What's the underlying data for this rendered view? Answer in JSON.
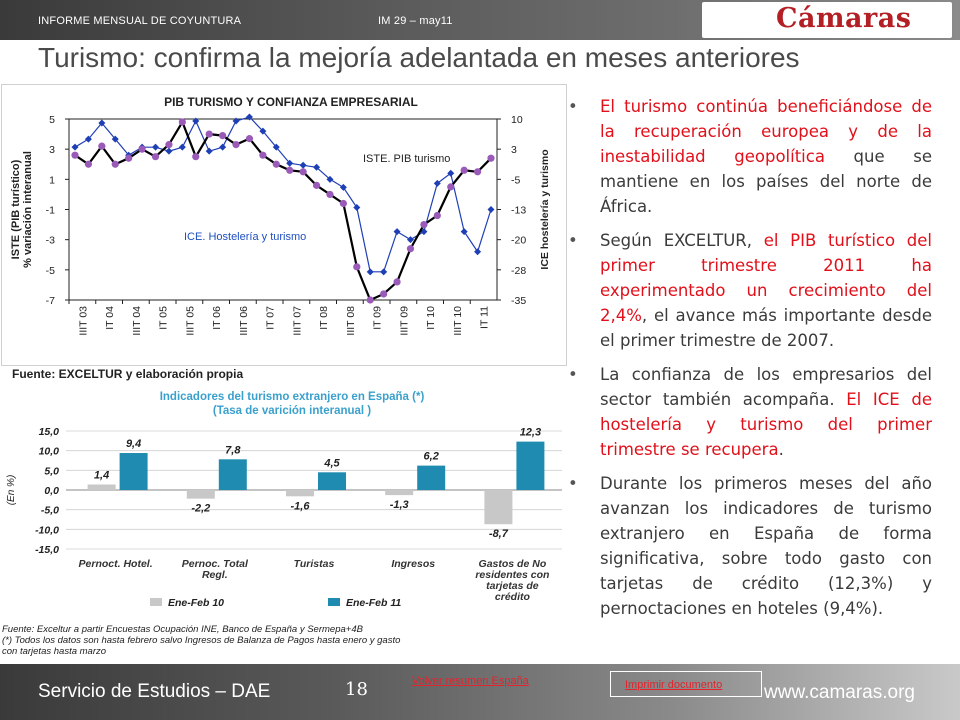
{
  "header": {
    "left": "INFORME MENSUAL DE COYUNTURA",
    "right": "IM 29 – may11",
    "logo": "Cámaras"
  },
  "title": "Turismo: confirma la mejoría adelantada en meses anteriores",
  "chart_data": [
    {
      "type": "line",
      "title": "PIB TURISMO Y CONFIANZA EMPRESARIAL",
      "ylabel_left": "ISTE (PIB turístico) % variación interanual",
      "ylabel_right": "ICE hostelería y turismo",
      "y_left_ticks": [
        "5",
        "3",
        "1",
        "-1",
        "-3",
        "-5",
        "-7"
      ],
      "y_right_ticks": [
        "10",
        "3",
        "-5",
        "-13",
        "-20",
        "-28",
        "-35"
      ],
      "ylim_left": [
        -7,
        5
      ],
      "ylim_right": [
        -35,
        10
      ],
      "x_ticks": [
        "IIIT 03",
        "IT 04",
        "IIIT 04",
        "IT 05",
        "IIIT 05",
        "IT 06",
        "IIIT 06",
        "IT 07",
        "IIIT 07",
        "IT 08",
        "IIIT 08",
        "IT 09",
        "IIIT 09",
        "IT 10",
        "IIIT 10",
        "IT 11"
      ],
      "series": [
        {
          "name": "ISTE. PIB turismo",
          "axis": "left",
          "color": "#000000",
          "values": [
            2.6,
            2.0,
            3.2,
            2.0,
            2.4,
            3.0,
            2.5,
            3.3,
            4.8,
            2.5,
            4.0,
            3.9,
            3.3,
            3.7,
            2.6,
            2.0,
            1.6,
            1.5,
            0.6,
            0.0,
            -0.6,
            -4.8,
            -7.0,
            -6.6,
            -5.8,
            -3.6,
            -2.0,
            -1.4,
            0.5,
            1.6,
            1.5,
            2.4
          ]
        },
        {
          "name": "ICE. Hostelería y turismo",
          "axis": "right",
          "color": "#1f3fb5",
          "values": [
            3.0,
            5.0,
            9.0,
            5.0,
            1.0,
            3.0,
            3.0,
            2.0,
            3.0,
            9.5,
            2.0,
            3.0,
            9.5,
            10.5,
            7.0,
            3.0,
            -1.0,
            -1.5,
            -2.0,
            -5.0,
            -7.0,
            -12.0,
            -28.0,
            -28.0,
            -18.0,
            -20.0,
            -18.0,
            -6.0,
            -3.5,
            -18.0,
            -23.0,
            -12.5
          ]
        }
      ]
    },
    {
      "type": "bar",
      "title": "Indicadores del turismo extranjero en España (*)",
      "subtitle": "(Tasa de varición interanual )",
      "ylabel": "(En %)",
      "ylim": [
        -15,
        15
      ],
      "y_ticks": [
        "15,0",
        "10,0",
        "5,0",
        "0,0",
        "-5,0",
        "-10,0",
        "-15,0"
      ],
      "categories": [
        "Pernoct. Hotel.",
        "Pernoc. Total Regl.",
        "Turistas",
        "Ingresos",
        "Gastos de No residentes con tarjetas de crédito"
      ],
      "category_lines": [
        [
          "Pernoct. Hotel."
        ],
        [
          "Pernoc. Total",
          "Regl."
        ],
        [
          "Turistas"
        ],
        [
          "Ingresos"
        ],
        [
          "Gastos de No",
          "residentes con",
          "tarjetas de",
          "crédito"
        ]
      ],
      "series": [
        {
          "name": "Ene-Feb 10",
          "color": "#c8c8c8",
          "values": [
            1.4,
            -2.2,
            -1.6,
            -1.3,
            -8.7
          ],
          "labels": [
            "1,4",
            "-2,2",
            "-1,6",
            "-1,3",
            "-8,7"
          ]
        },
        {
          "name": "Ene-Feb 11",
          "color": "#1f8bb0",
          "values": [
            9.4,
            7.8,
            4.5,
            6.2,
            12.3
          ],
          "labels": [
            "9,4",
            "7,8",
            "4,5",
            "6,2",
            "12,3"
          ]
        }
      ]
    }
  ],
  "source1": "Fuente: EXCELTUR y elaboración propia",
  "notes2": [
    "Fuente: Exceltur a partir Encuestas Ocupación INE, Banco de España y Sermepa+4B",
    "(*) Todos los datos son hasta febrero salvo Ingresos de Balanza de Pagos hasta enero y  gasto",
    "con tarjetas hasta marzo"
  ],
  "bullets": [
    [
      {
        "text": "El turismo continúa beneficiándose de la recuperación europea y de la inestabilidad geopolítica",
        "red": true
      },
      {
        "text": " que se mantiene en los países del norte de África.",
        "red": false
      }
    ],
    [
      {
        "text": "Según EXCELTUR, ",
        "red": false
      },
      {
        "text": "el PIB turístico del primer trimestre 2011 ha experimentado un crecimiento del 2,4%",
        "red": true
      },
      {
        "text": ", el avance más importante desde el primer trimestre de 2007.",
        "red": false
      }
    ],
    [
      {
        "text": "La confianza de los empresarios del sector también acompaña. ",
        "red": false
      },
      {
        "text": "El ICE de hostelería y turismo del primer trimestre se recupera",
        "red": true
      },
      {
        "text": ".",
        "red": false
      }
    ],
    [
      {
        "text": "Durante los primeros meses del año avanzan los indicadores de turismo extranjero en España de forma significativa, sobre todo gasto con tarjetas de crédito (12,3%) y pernoctaciones en hoteles (9,4%).",
        "red": false
      }
    ]
  ],
  "footer": {
    "left": "Servicio de Estudios – DAE",
    "page": "18",
    "link": "Volver resumen España",
    "print": "Imprimir documento",
    "url": "www.camaras.org"
  }
}
